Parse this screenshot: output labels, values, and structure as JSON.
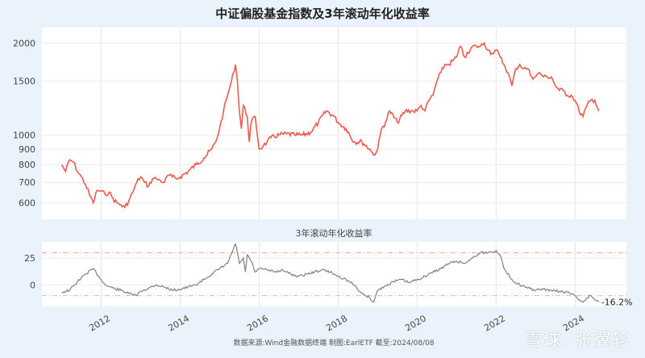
{
  "footer": "数据来源:Wind金融数据终端  制图:EarlETF 截至:2024/08/08",
  "watermark": "雪球: 张翼轸",
  "colors": {
    "index_line": "#ee5a4d",
    "rolling_line": "#808080",
    "upper_ref": "#f2a0a0",
    "lower_ref": "#a9c6e8",
    "panel_bg": "#ffffff",
    "page_bg": "#eaf3fb"
  },
  "chart_data": [
    {
      "type": "line",
      "title": "中证偏股基金指数及3年滚动年化收益率",
      "yscale": "log",
      "ylim": [
        530,
        2250
      ],
      "yticks": [
        600,
        700,
        800,
        900,
        1000,
        1500,
        2000
      ],
      "xlim": [
        2010.5,
        2025.3
      ],
      "series": [
        {
          "x": [
            2011.0,
            2011.1,
            2011.2,
            2011.3,
            2011.4,
            2011.5,
            2011.6,
            2011.7,
            2011.8,
            2011.9,
            2012.0,
            2012.1,
            2012.2,
            2012.3,
            2012.4,
            2012.5,
            2012.6,
            2012.7,
            2012.8,
            2012.9,
            2013.0,
            2013.1,
            2013.2,
            2013.3,
            2013.4,
            2013.5,
            2013.6,
            2013.7,
            2013.8,
            2013.9,
            2014.0,
            2014.2,
            2014.4,
            2014.6,
            2014.8,
            2014.9,
            2015.0,
            2015.1,
            2015.2,
            2015.3,
            2015.35,
            2015.4,
            2015.45,
            2015.5,
            2015.55,
            2015.6,
            2015.7,
            2015.75,
            2015.8,
            2015.9,
            2016.0,
            2016.1,
            2016.2,
            2016.3,
            2016.5,
            2016.7,
            2016.9,
            2017.1,
            2017.3,
            2017.5,
            2017.7,
            2017.9,
            2018.0,
            2018.2,
            2018.4,
            2018.6,
            2018.8,
            2018.9,
            2019.0,
            2019.1,
            2019.2,
            2019.3,
            2019.5,
            2019.7,
            2019.9,
            2020.0,
            2020.1,
            2020.2,
            2020.3,
            2020.4,
            2020.5,
            2020.6,
            2020.7,
            2020.8,
            2020.9,
            2021.0,
            2021.1,
            2021.2,
            2021.3,
            2021.4,
            2021.5,
            2021.6,
            2021.7,
            2021.8,
            2021.9,
            2022.0,
            2022.1,
            2022.2,
            2022.3,
            2022.4,
            2022.5,
            2022.6,
            2022.7,
            2022.8,
            2022.9,
            2023.0,
            2023.1,
            2023.2,
            2023.3,
            2023.4,
            2023.5,
            2023.6,
            2023.7,
            2023.8,
            2023.9,
            2024.0,
            2024.1,
            2024.2,
            2024.3,
            2024.4,
            2024.5,
            2024.6
          ],
          "y": [
            800,
            760,
            830,
            815,
            760,
            730,
            690,
            640,
            600,
            660,
            655,
            640,
            650,
            620,
            600,
            590,
            580,
            610,
            650,
            700,
            730,
            700,
            680,
            720,
            720,
            710,
            700,
            740,
            730,
            720,
            730,
            760,
            800,
            840,
            900,
            950,
            1050,
            1200,
            1350,
            1500,
            1600,
            1700,
            1500,
            1200,
            1050,
            1250,
            1150,
            950,
            1100,
            1150,
            900,
            920,
            950,
            980,
            1000,
            1010,
            1000,
            1000,
            1020,
            1100,
            1200,
            1150,
            1100,
            1050,
            950,
            950,
            900,
            860,
            900,
            1050,
            1100,
            1200,
            1100,
            1200,
            1200,
            1200,
            1250,
            1200,
            1300,
            1350,
            1500,
            1600,
            1700,
            1700,
            1750,
            1800,
            1950,
            1800,
            1850,
            1950,
            1950,
            1950,
            2000,
            1900,
            1850,
            1900,
            1800,
            1700,
            1600,
            1450,
            1650,
            1700,
            1650,
            1650,
            1550,
            1550,
            1600,
            1550,
            1550,
            1550,
            1450,
            1400,
            1400,
            1350,
            1350,
            1300,
            1200,
            1150,
            1250,
            1300,
            1300,
            1200
          ]
        }
      ]
    },
    {
      "type": "line",
      "title": "3年滚动年化收益率",
      "ylim": [
        -20,
        40
      ],
      "yticks": [
        0,
        25
      ],
      "xlim": [
        2010.5,
        2025.3
      ],
      "xticks": [
        "2012",
        "2014",
        "2016",
        "2018",
        "2020",
        "2022",
        "2024"
      ],
      "reference_lines": [
        30,
        -10
      ],
      "end_label": "-16.2%",
      "series": [
        {
          "x": [
            2011.0,
            2011.2,
            2011.4,
            2011.6,
            2011.8,
            2012.0,
            2012.1,
            2012.3,
            2012.5,
            2012.7,
            2012.9,
            2013.0,
            2013.2,
            2013.4,
            2013.6,
            2013.8,
            2014.0,
            2014.2,
            2014.4,
            2014.6,
            2014.8,
            2015.0,
            2015.2,
            2015.4,
            2015.45,
            2015.5,
            2015.6,
            2015.65,
            2015.7,
            2015.8,
            2015.9,
            2016.0,
            2016.2,
            2016.4,
            2016.6,
            2016.8,
            2017.0,
            2017.2,
            2017.4,
            2017.6,
            2017.8,
            2018.0,
            2018.2,
            2018.4,
            2018.6,
            2018.7,
            2018.8,
            2018.9,
            2019.0,
            2019.2,
            2019.4,
            2019.6,
            2019.8,
            2020.0,
            2020.2,
            2020.4,
            2020.6,
            2020.8,
            2021.0,
            2021.2,
            2021.4,
            2021.6,
            2021.8,
            2022.0,
            2022.1,
            2022.2,
            2022.4,
            2022.6,
            2022.8,
            2023.0,
            2023.2,
            2023.4,
            2023.6,
            2023.8,
            2024.0,
            2024.1,
            2024.2,
            2024.3,
            2024.4,
            2024.5,
            2024.6
          ],
          "y": [
            -7,
            -5,
            3,
            10,
            15,
            5,
            0,
            -3,
            -5,
            -8,
            -10,
            -6,
            -3,
            0,
            -2,
            -5,
            -4,
            -2,
            0,
            5,
            10,
            15,
            20,
            38,
            30,
            20,
            25,
            12,
            28,
            22,
            12,
            15,
            14,
            12,
            14,
            10,
            8,
            10,
            12,
            14,
            12,
            8,
            5,
            0,
            -8,
            -10,
            -12,
            -16,
            -5,
            -1,
            3,
            5,
            2,
            5,
            8,
            12,
            15,
            20,
            22,
            20,
            25,
            30,
            30,
            32,
            28,
            15,
            5,
            0,
            -3,
            -5,
            -4,
            -5,
            -6,
            -7,
            -10,
            -14,
            -16,
            -12,
            -10,
            -14,
            -16
          ]
        }
      ]
    }
  ]
}
